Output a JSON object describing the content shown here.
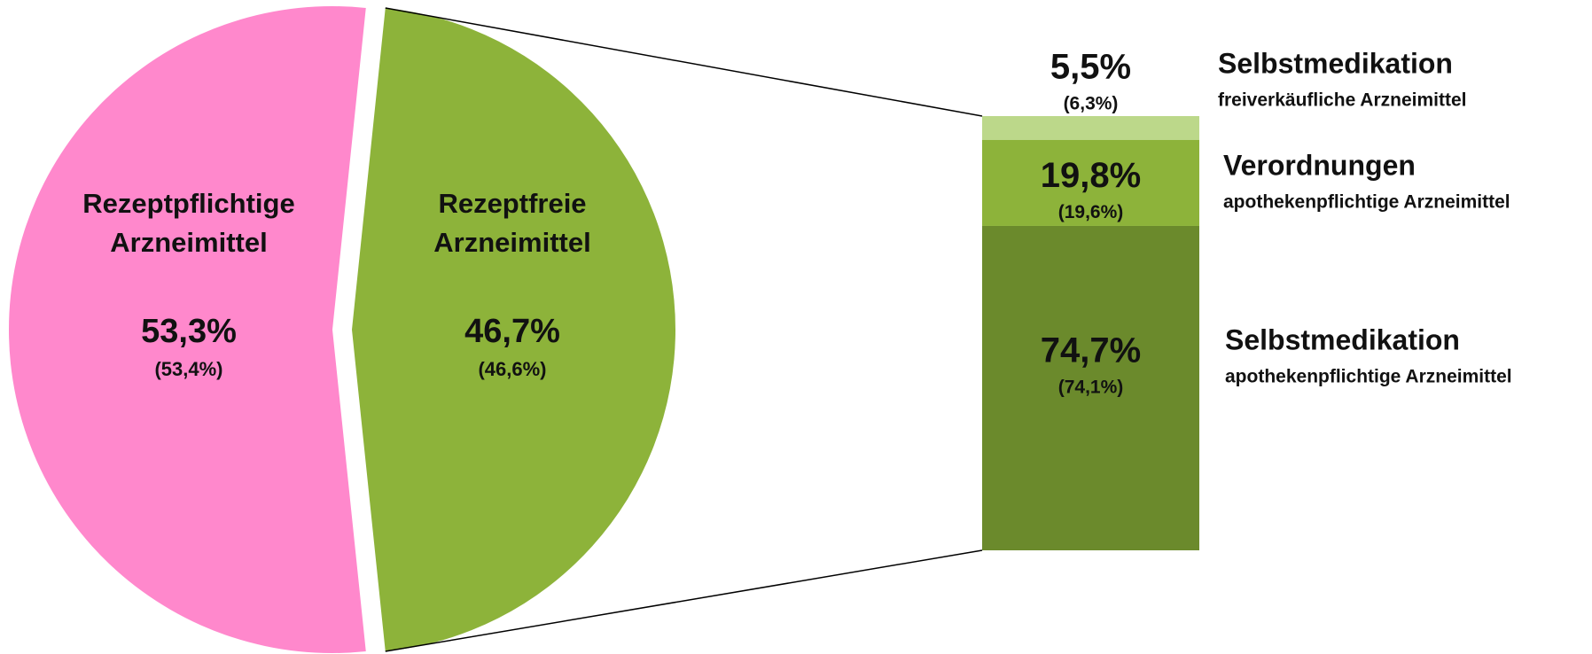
{
  "chart_data": {
    "type": "pie",
    "slices": {
      "labels": [
        [
          "Rezeptpflichtige",
          "Arzneimittel"
        ],
        [
          "Rezeptfreie",
          "Arzneimittel"
        ]
      ],
      "values": [
        53.3,
        46.7
      ],
      "value_labels": [
        "53,3%",
        "46,7%"
      ],
      "prior_labels": [
        "(53,4%)",
        "(46,6%)"
      ],
      "colors": [
        "#ff88cc",
        "#8db33a"
      ]
    },
    "breakdown": {
      "type": "bar",
      "values": [
        5.5,
        19.8,
        74.7
      ],
      "value_labels": [
        "5,5%",
        "19,8%",
        "74,7%"
      ],
      "prior_labels": [
        "(6,3%)",
        "(19,6%)",
        "(74,1%)"
      ],
      "names": [
        "Selbstmedikation",
        "Verordnungen",
        "Selbstmedikation"
      ],
      "subnames": [
        "freiverkäufliche Arzneimittel",
        "apothekenpflichtige Arzneimittel",
        "apothekenpflichtige Arzneimittel"
      ],
      "colors": [
        "#bcd88a",
        "#8db33a",
        "#6b8a2c"
      ]
    }
  }
}
